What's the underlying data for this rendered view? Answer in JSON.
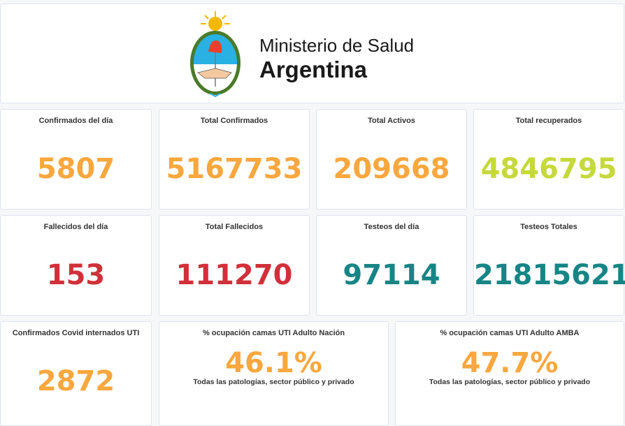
{
  "header": {
    "line1": "Ministerio de Salud",
    "line2": "Argentina"
  },
  "colors": {
    "orange": "#f9a73e",
    "lime": "#c5d93a",
    "red": "#d1303a",
    "teal": "#178585"
  },
  "cards": [
    {
      "title": "Confirmados del día",
      "value": "5807"
    },
    {
      "title": "Total Confirmados",
      "value": "5167733"
    },
    {
      "title": "Total Activos",
      "value": "209668"
    },
    {
      "title": "Total recuperados",
      "value": "4846795"
    },
    {
      "title": "Fallecidos del día",
      "value": "153"
    },
    {
      "title": "Total Fallecidos",
      "value": "111270"
    },
    {
      "title": "Testeos del día",
      "value": "97114"
    },
    {
      "title": "Testeos Totales",
      "value": "21815621"
    },
    {
      "title": "Confirmados Covid internados UTI",
      "value": "2872"
    },
    {
      "title": "% ocupación camas UTI Adulto Nación",
      "value": "46.1%",
      "subtitle": "Todas las patologías, sector público y privado"
    },
    {
      "title": "% ocupación camas UTI Adulto AMBA",
      "value": "47.7%",
      "subtitle": "Todas las patologías, sector público y privado"
    }
  ]
}
